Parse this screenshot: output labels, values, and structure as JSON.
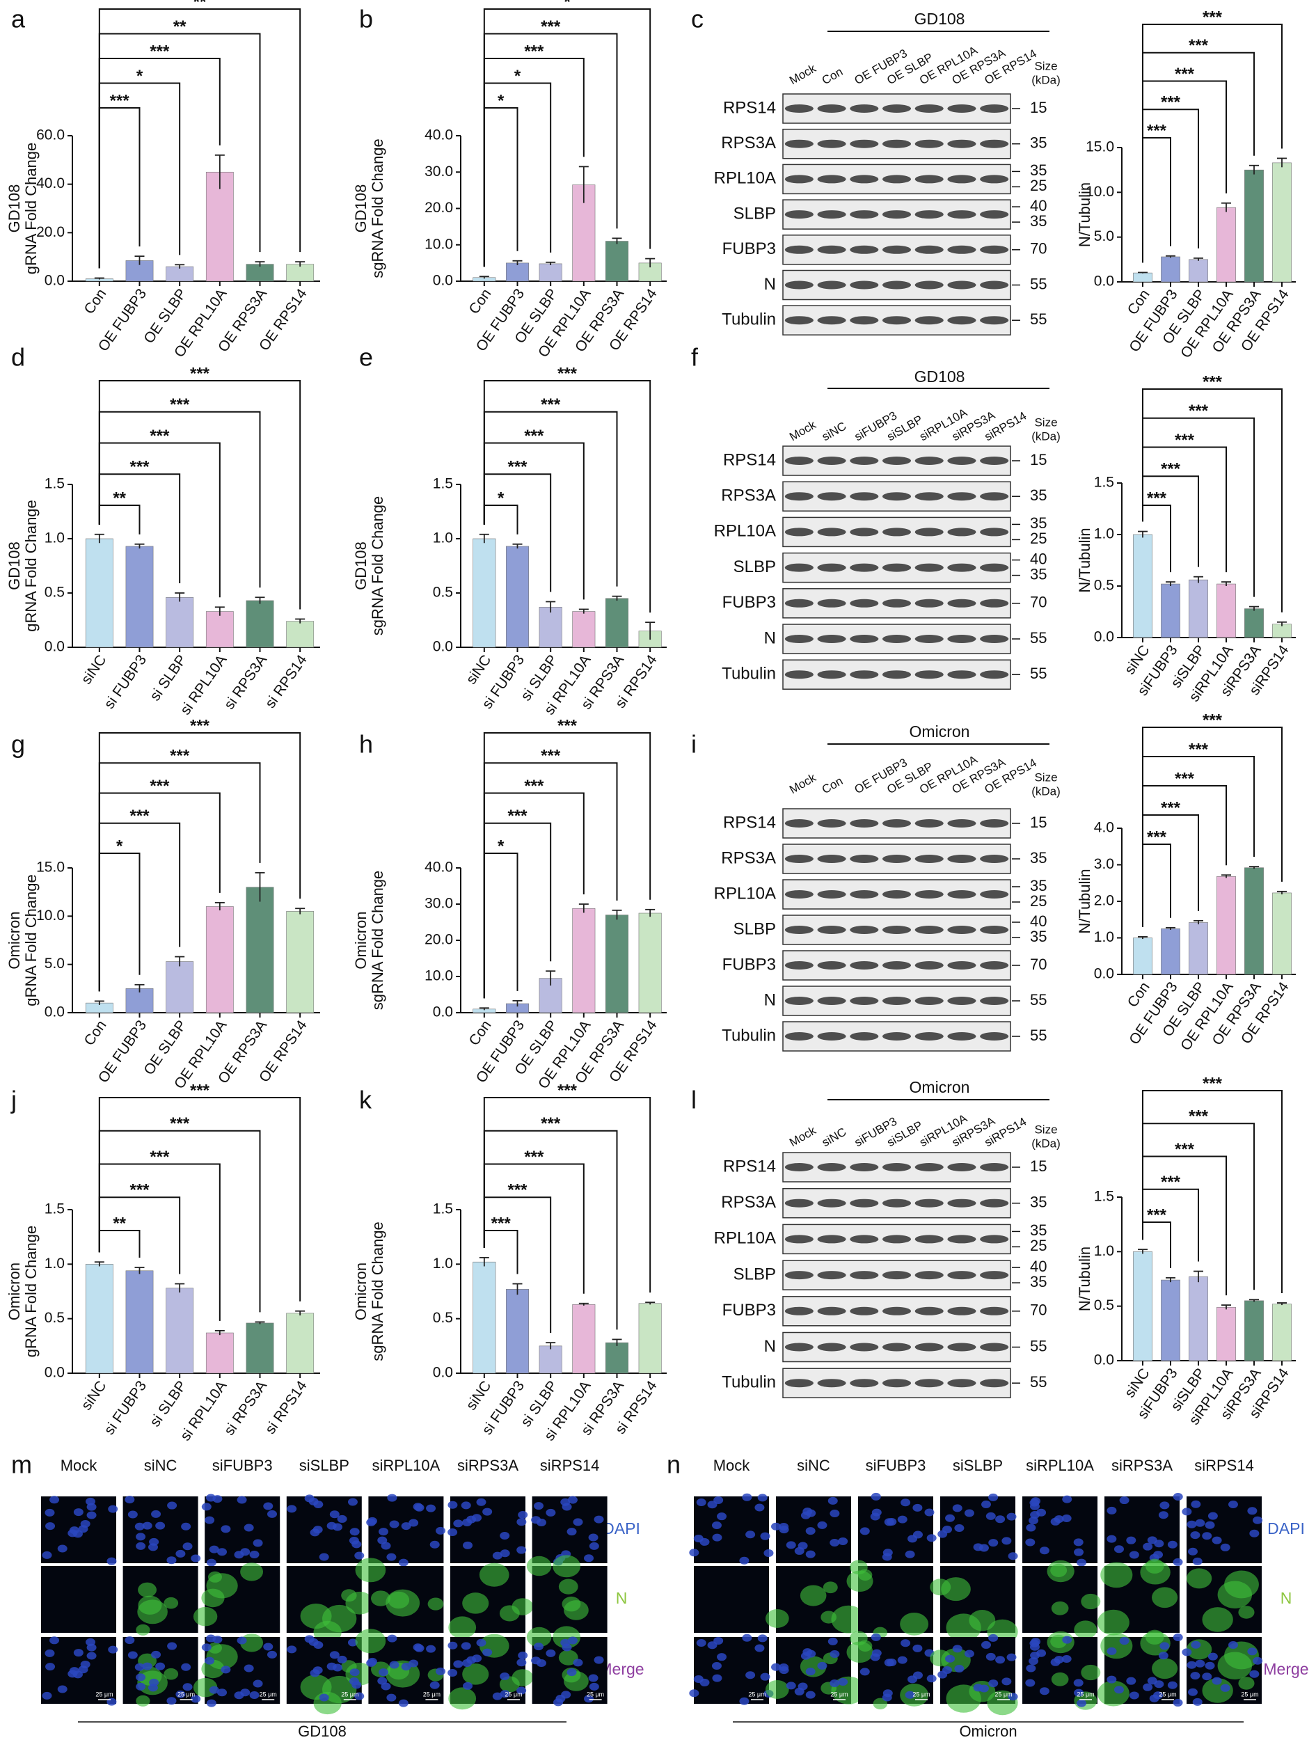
{
  "chart_data": [
    {
      "type": "bar",
      "panel": "a",
      "ylabel": [
        "GD108",
        "gRNA Fold Change"
      ],
      "categories": [
        "Con",
        "OE FUBP3",
        "OE SLBP",
        "OE RPL10A",
        "OE RPS3A",
        "OE RPS14"
      ],
      "values": [
        1,
        8.5,
        6,
        45,
        7,
        7
      ],
      "errors": [
        0.3,
        1.8,
        0.8,
        7,
        1,
        1
      ],
      "colors": [
        "#bfe0ef",
        "#8f9ed6",
        "#b9bbe0",
        "#e7b7d8",
        "#5f8f78",
        "#c9e5c4"
      ],
      "ylim": [
        0,
        60
      ],
      "yticks": [
        {
          "value": 0,
          "label": "0.0"
        },
        {
          "value": 20,
          "label": "20.0"
        },
        {
          "value": 40,
          "label": "40.0"
        },
        {
          "value": 60,
          "label": "60.0"
        }
      ],
      "significance": [
        null,
        "***",
        "*",
        "***",
        "**",
        "**"
      ]
    },
    {
      "type": "bar",
      "panel": "b",
      "ylabel": [
        "GD108",
        "sgRNA Fold Change"
      ],
      "categories": [
        "Con",
        "OE FUBP3",
        "OE SLBP",
        "OE RPL10A",
        "OE RPS3A",
        "OE RPS14"
      ],
      "values": [
        1,
        5,
        4.8,
        26.5,
        11,
        5
      ],
      "errors": [
        0.3,
        0.6,
        0.4,
        5,
        0.8,
        1.2
      ],
      "colors": [
        "#bfe0ef",
        "#8f9ed6",
        "#b9bbe0",
        "#e7b7d8",
        "#5f8f78",
        "#c9e5c4"
      ],
      "ylim": [
        0,
        40
      ],
      "yticks": [
        {
          "value": 0,
          "label": "0.0"
        },
        {
          "value": 10,
          "label": "10.0"
        },
        {
          "value": 20,
          "label": "20.0"
        },
        {
          "value": 30,
          "label": "30.0"
        },
        {
          "value": 40,
          "label": "40.0"
        }
      ],
      "significance": [
        null,
        "*",
        "*",
        "***",
        "***",
        "*"
      ]
    },
    {
      "type": "bar",
      "ylabel": [
        "N/Tubulin"
      ],
      "categories": [
        "Con",
        "OE FUBP3",
        "OE SLBP",
        "OE RPL10A",
        "OE RPS3A",
        "OE RPS14"
      ],
      "values": [
        1,
        2.8,
        2.5,
        8.3,
        12.5,
        13.3
      ],
      "errors": [
        0.05,
        0.1,
        0.15,
        0.5,
        0.5,
        0.5
      ],
      "colors": [
        "#bfe0ef",
        "#8f9ed6",
        "#b9bbe0",
        "#e7b7d8",
        "#5f8f78",
        "#c9e5c4"
      ],
      "ylim": [
        0,
        15
      ],
      "yticks": [
        {
          "value": 0,
          "label": "0.0"
        },
        {
          "value": 5,
          "label": "5.0"
        },
        {
          "value": 10,
          "label": "10.0"
        },
        {
          "value": 15,
          "label": "15.0"
        }
      ],
      "significance": [
        null,
        "***",
        "***",
        "***",
        "***",
        "***"
      ]
    },
    {
      "type": "bar",
      "panel": "d",
      "ylabel": [
        "GD108",
        "gRNA Fold Change"
      ],
      "categories": [
        "siNC",
        "si FUBP3",
        "si SLBP",
        "si RPL10A",
        "si RPS3A",
        "si RPS14"
      ],
      "values": [
        1,
        0.93,
        0.46,
        0.33,
        0.43,
        0.24
      ],
      "errors": [
        0.04,
        0.02,
        0.04,
        0.04,
        0.03,
        0.02
      ],
      "colors": [
        "#bfe0ef",
        "#8f9ed6",
        "#b9bbe0",
        "#e7b7d8",
        "#5f8f78",
        "#c9e5c4"
      ],
      "ylim": [
        0,
        1.5
      ],
      "yticks": [
        {
          "value": 0,
          "label": "0.0"
        },
        0.5,
        {
          "value": 1,
          "label": "1.0"
        },
        1.5
      ],
      "significance": [
        null,
        "**",
        "***",
        "***",
        "***",
        "***"
      ]
    },
    {
      "type": "bar",
      "panel": "e",
      "ylabel": [
        "GD108",
        "sgRNA Fold Change"
      ],
      "categories": [
        "siNC",
        "si FUBP3",
        "si SLBP",
        "si RPL10A",
        "si RPS3A",
        "si RPS14"
      ],
      "values": [
        1,
        0.93,
        0.37,
        0.33,
        0.45,
        0.15
      ],
      "errors": [
        0.04,
        0.02,
        0.05,
        0.02,
        0.02,
        0.08
      ],
      "colors": [
        "#bfe0ef",
        "#8f9ed6",
        "#b9bbe0",
        "#e7b7d8",
        "#5f8f78",
        "#c9e5c4"
      ],
      "ylim": [
        0,
        1.5
      ],
      "yticks": [
        {
          "value": 0,
          "label": "0.0"
        },
        0.5,
        {
          "value": 1,
          "label": "1.0"
        },
        1.5
      ],
      "significance": [
        null,
        "*",
        "***",
        "***",
        "***",
        "***"
      ]
    },
    {
      "type": "bar",
      "ylabel": [
        "N/Tubulin"
      ],
      "categories": [
        "siNC",
        "siFUBP3",
        "siSLBP",
        "siRPL10A",
        "siRPS3A",
        "siRPS14"
      ],
      "values": [
        1,
        0.52,
        0.56,
        0.52,
        0.28,
        0.13
      ],
      "errors": [
        0.03,
        0.02,
        0.03,
        0.02,
        0.02,
        0.02
      ],
      "colors": [
        "#bfe0ef",
        "#8f9ed6",
        "#b9bbe0",
        "#e7b7d8",
        "#5f8f78",
        "#c9e5c4"
      ],
      "ylim": [
        0,
        1.5
      ],
      "yticks": [
        {
          "value": 0,
          "label": "0.0"
        },
        0.5,
        {
          "value": 1,
          "label": "1.0"
        },
        1.5
      ],
      "significance": [
        null,
        "***",
        "***",
        "***",
        "***",
        "***"
      ]
    },
    {
      "type": "bar",
      "panel": "g",
      "ylabel": [
        "Omicron",
        "gRNA Fold Change"
      ],
      "categories": [
        "Con",
        "OE FUBP3",
        "OE SLBP",
        "OE RPL10A",
        "OE RPS3A",
        "OE RPS14"
      ],
      "values": [
        1,
        2.5,
        5.3,
        11,
        13,
        10.5
      ],
      "errors": [
        0.2,
        0.4,
        0.5,
        0.4,
        1.5,
        0.3
      ],
      "colors": [
        "#bfe0ef",
        "#8f9ed6",
        "#b9bbe0",
        "#e7b7d8",
        "#5f8f78",
        "#c9e5c4"
      ],
      "ylim": [
        0,
        15
      ],
      "yticks": [
        {
          "value": 0,
          "label": "0.0"
        },
        {
          "value": 5,
          "label": "5.0"
        },
        {
          "value": 10,
          "label": "10.0"
        },
        {
          "value": 15,
          "label": "15.0"
        }
      ],
      "significance": [
        null,
        "*",
        "***",
        "***",
        "***",
        "***"
      ]
    },
    {
      "type": "bar",
      "panel": "h",
      "ylabel": [
        "Omicron",
        "sgRNA Fold Change"
      ],
      "categories": [
        "Con",
        "OE FUBP3",
        "OE SLBP",
        "OE RPL10A",
        "OE RPS3A",
        "OE RPS14"
      ],
      "values": [
        1,
        2.5,
        9.5,
        28.8,
        27,
        27.5
      ],
      "errors": [
        0.3,
        0.8,
        2,
        1.2,
        1.3,
        1
      ],
      "colors": [
        "#bfe0ef",
        "#8f9ed6",
        "#b9bbe0",
        "#e7b7d8",
        "#5f8f78",
        "#c9e5c4"
      ],
      "ylim": [
        0,
        40
      ],
      "yticks": [
        {
          "value": 0,
          "label": "0.0"
        },
        {
          "value": 10,
          "label": "10.0"
        },
        {
          "value": 20,
          "label": "20.0"
        },
        {
          "value": 30,
          "label": "30.0"
        },
        {
          "value": 40,
          "label": "40.0"
        }
      ],
      "significance": [
        null,
        "*",
        "***",
        "***",
        "***",
        "***"
      ]
    },
    {
      "type": "bar",
      "ylabel": [
        "N/Tubulin"
      ],
      "categories": [
        "Con",
        "OE FUBP3",
        "OE SLBP",
        "OE RPL10A",
        "OE RPS3A",
        "OE RPS14"
      ],
      "values": [
        1,
        1.25,
        1.42,
        2.68,
        2.92,
        2.23
      ],
      "errors": [
        0.03,
        0.03,
        0.05,
        0.04,
        0.03,
        0.04
      ],
      "colors": [
        "#bfe0ef",
        "#8f9ed6",
        "#b9bbe0",
        "#e7b7d8",
        "#5f8f78",
        "#c9e5c4"
      ],
      "ylim": [
        0,
        4
      ],
      "yticks": [
        {
          "value": 0,
          "label": "0.0"
        },
        {
          "value": 1,
          "label": "1.0"
        },
        {
          "value": 2,
          "label": "2.0"
        },
        {
          "value": 3,
          "label": "3.0"
        },
        {
          "value": 4,
          "label": "4.0"
        }
      ],
      "significance": [
        null,
        "***",
        "***",
        "***",
        "***",
        "***"
      ]
    },
    {
      "type": "bar",
      "panel": "j",
      "ylabel": [
        "Omicron",
        "gRNA Fold Change"
      ],
      "categories": [
        "siNC",
        "si FUBP3",
        "si SLBP",
        "si RPL10A",
        "si RPS3A",
        "si RPS14"
      ],
      "values": [
        1,
        0.94,
        0.78,
        0.37,
        0.46,
        0.55
      ],
      "errors": [
        0.02,
        0.03,
        0.04,
        0.02,
        0.01,
        0.02
      ],
      "colors": [
        "#bfe0ef",
        "#8f9ed6",
        "#b9bbe0",
        "#e7b7d8",
        "#5f8f78",
        "#c9e5c4"
      ],
      "ylim": [
        0,
        1.5
      ],
      "yticks": [
        {
          "value": 0,
          "label": "0.0"
        },
        0.5,
        {
          "value": 1,
          "label": "1.0"
        },
        1.5
      ],
      "significance": [
        null,
        "**",
        "***",
        "***",
        "***",
        "***"
      ]
    },
    {
      "type": "bar",
      "panel": "k",
      "ylabel": [
        "Omicron",
        "sgRNA Fold Change"
      ],
      "categories": [
        "siNC",
        "si FUBP3",
        "si SLBP",
        "si RPL10A",
        "si RPS3A",
        "si RPS14"
      ],
      "values": [
        1.02,
        0.77,
        0.25,
        0.63,
        0.28,
        0.64
      ],
      "errors": [
        0.04,
        0.05,
        0.03,
        0.01,
        0.03,
        0.01
      ],
      "colors": [
        "#bfe0ef",
        "#8f9ed6",
        "#b9bbe0",
        "#e7b7d8",
        "#5f8f78",
        "#c9e5c4"
      ],
      "ylim": [
        0,
        1.5
      ],
      "yticks": [
        {
          "value": 0,
          "label": "0.0"
        },
        0.5,
        {
          "value": 1,
          "label": "1.0"
        },
        1.5
      ],
      "significance": [
        null,
        "***",
        "***",
        "***",
        "***",
        "***"
      ]
    },
    {
      "type": "bar",
      "ylabel": [
        "N/Tubulin"
      ],
      "categories": [
        "siNC",
        "siFUBP3",
        "siSLBP",
        "siRPL10A",
        "siRPS3A",
        "siRPS14"
      ],
      "values": [
        1,
        0.74,
        0.77,
        0.49,
        0.55,
        0.52
      ],
      "errors": [
        0.02,
        0.02,
        0.05,
        0.02,
        0.01,
        0.01
      ],
      "colors": [
        "#bfe0ef",
        "#8f9ed6",
        "#b9bbe0",
        "#e7b7d8",
        "#5f8f78",
        "#c9e5c4"
      ],
      "ylim": [
        0,
        1.5
      ],
      "yticks": [
        {
          "value": 0,
          "label": "0.0"
        },
        0.5,
        {
          "value": 1,
          "label": "1.0"
        },
        1.5
      ],
      "significance": [
        null,
        "***",
        "***",
        "***",
        "***",
        "***"
      ]
    }
  ],
  "blots": [
    {
      "panel": "c",
      "title": "GD108",
      "lanes": [
        "Mock",
        "Con",
        "OE FUBP3",
        "OE SLBP",
        "OE RPL10A",
        "OE RPS3A",
        "OE RPS14"
      ],
      "size_header": [
        "Size",
        "(kDa)"
      ],
      "rows": [
        {
          "name": "RPS14",
          "sizes": [
            15
          ]
        },
        {
          "name": "RPS3A",
          "sizes": [
            35
          ]
        },
        {
          "name": "RPL10A",
          "sizes": [
            35,
            25
          ]
        },
        {
          "name": "SLBP",
          "sizes": [
            40,
            35
          ]
        },
        {
          "name": "FUBP3",
          "sizes": [
            70
          ]
        },
        {
          "name": "N",
          "sizes": [
            55
          ]
        },
        {
          "name": "Tubulin",
          "sizes": [
            55
          ]
        }
      ]
    },
    {
      "panel": "f",
      "title": "GD108",
      "lanes": [
        "Mock",
        "siNC",
        "siFUBP3",
        "siSLBP",
        "siRPL10A",
        "siRPS3A",
        "siRPS14"
      ],
      "size_header": [
        "Size",
        "(kDa)"
      ],
      "rows": [
        {
          "name": "RPS14",
          "sizes": [
            15
          ]
        },
        {
          "name": "RPS3A",
          "sizes": [
            35
          ]
        },
        {
          "name": "RPL10A",
          "sizes": [
            35,
            25
          ]
        },
        {
          "name": "SLBP",
          "sizes": [
            40,
            35
          ]
        },
        {
          "name": "FUBP3",
          "sizes": [
            70
          ]
        },
        {
          "name": "N",
          "sizes": [
            55
          ]
        },
        {
          "name": "Tubulin",
          "sizes": [
            55
          ]
        }
      ]
    },
    {
      "panel": "i",
      "title": "Omicron",
      "lanes": [
        "Mock",
        "Con",
        "OE FUBP3",
        "OE SLBP",
        "OE RPL10A",
        "OE RPS3A",
        "OE RPS14"
      ],
      "size_header": [
        "Size",
        "(kDa)"
      ],
      "rows": [
        {
          "name": "RPS14",
          "sizes": [
            15
          ]
        },
        {
          "name": "RPS3A",
          "sizes": [
            35
          ]
        },
        {
          "name": "RPL10A",
          "sizes": [
            35,
            25
          ]
        },
        {
          "name": "SLBP",
          "sizes": [
            40,
            35
          ]
        },
        {
          "name": "FUBP3",
          "sizes": [
            70
          ]
        },
        {
          "name": "N",
          "sizes": [
            55
          ]
        },
        {
          "name": "Tubulin",
          "sizes": [
            55
          ]
        }
      ]
    },
    {
      "panel": "l",
      "title": "Omicron",
      "lanes": [
        "Mock",
        "siNC",
        "siFUBP3",
        "siSLBP",
        "siRPL10A",
        "siRPS3A",
        "siRPS14"
      ],
      "size_header": [
        "Size",
        "(kDa)"
      ],
      "rows": [
        {
          "name": "RPS14",
          "sizes": [
            15
          ]
        },
        {
          "name": "RPS3A",
          "sizes": [
            35
          ]
        },
        {
          "name": "RPL10A",
          "sizes": [
            35,
            25
          ]
        },
        {
          "name": "SLBP",
          "sizes": [
            40,
            35
          ]
        },
        {
          "name": "FUBP3",
          "sizes": [
            70
          ]
        },
        {
          "name": "N",
          "sizes": [
            55
          ]
        },
        {
          "name": "Tubulin",
          "sizes": [
            55
          ]
        }
      ]
    }
  ],
  "micrographs": [
    {
      "panel": "m",
      "columns": [
        "Mock",
        "siNC",
        "siFUBP3",
        "siSLBP",
        "siRPL10A",
        "siRPS3A",
        "siRPS14"
      ],
      "channels": [
        "DAPI",
        "N",
        "Merge"
      ],
      "scale_bar": "25 μm",
      "footer": "GD108"
    },
    {
      "panel": "n",
      "columns": [
        "Mock",
        "siNC",
        "siFUBP3",
        "siSLBP",
        "siRPL10A",
        "siRPS3A",
        "siRPS14"
      ],
      "channels": [
        "DAPI",
        "N",
        "Merge"
      ],
      "scale_bar": "25 μm",
      "footer": "Omicron"
    }
  ]
}
